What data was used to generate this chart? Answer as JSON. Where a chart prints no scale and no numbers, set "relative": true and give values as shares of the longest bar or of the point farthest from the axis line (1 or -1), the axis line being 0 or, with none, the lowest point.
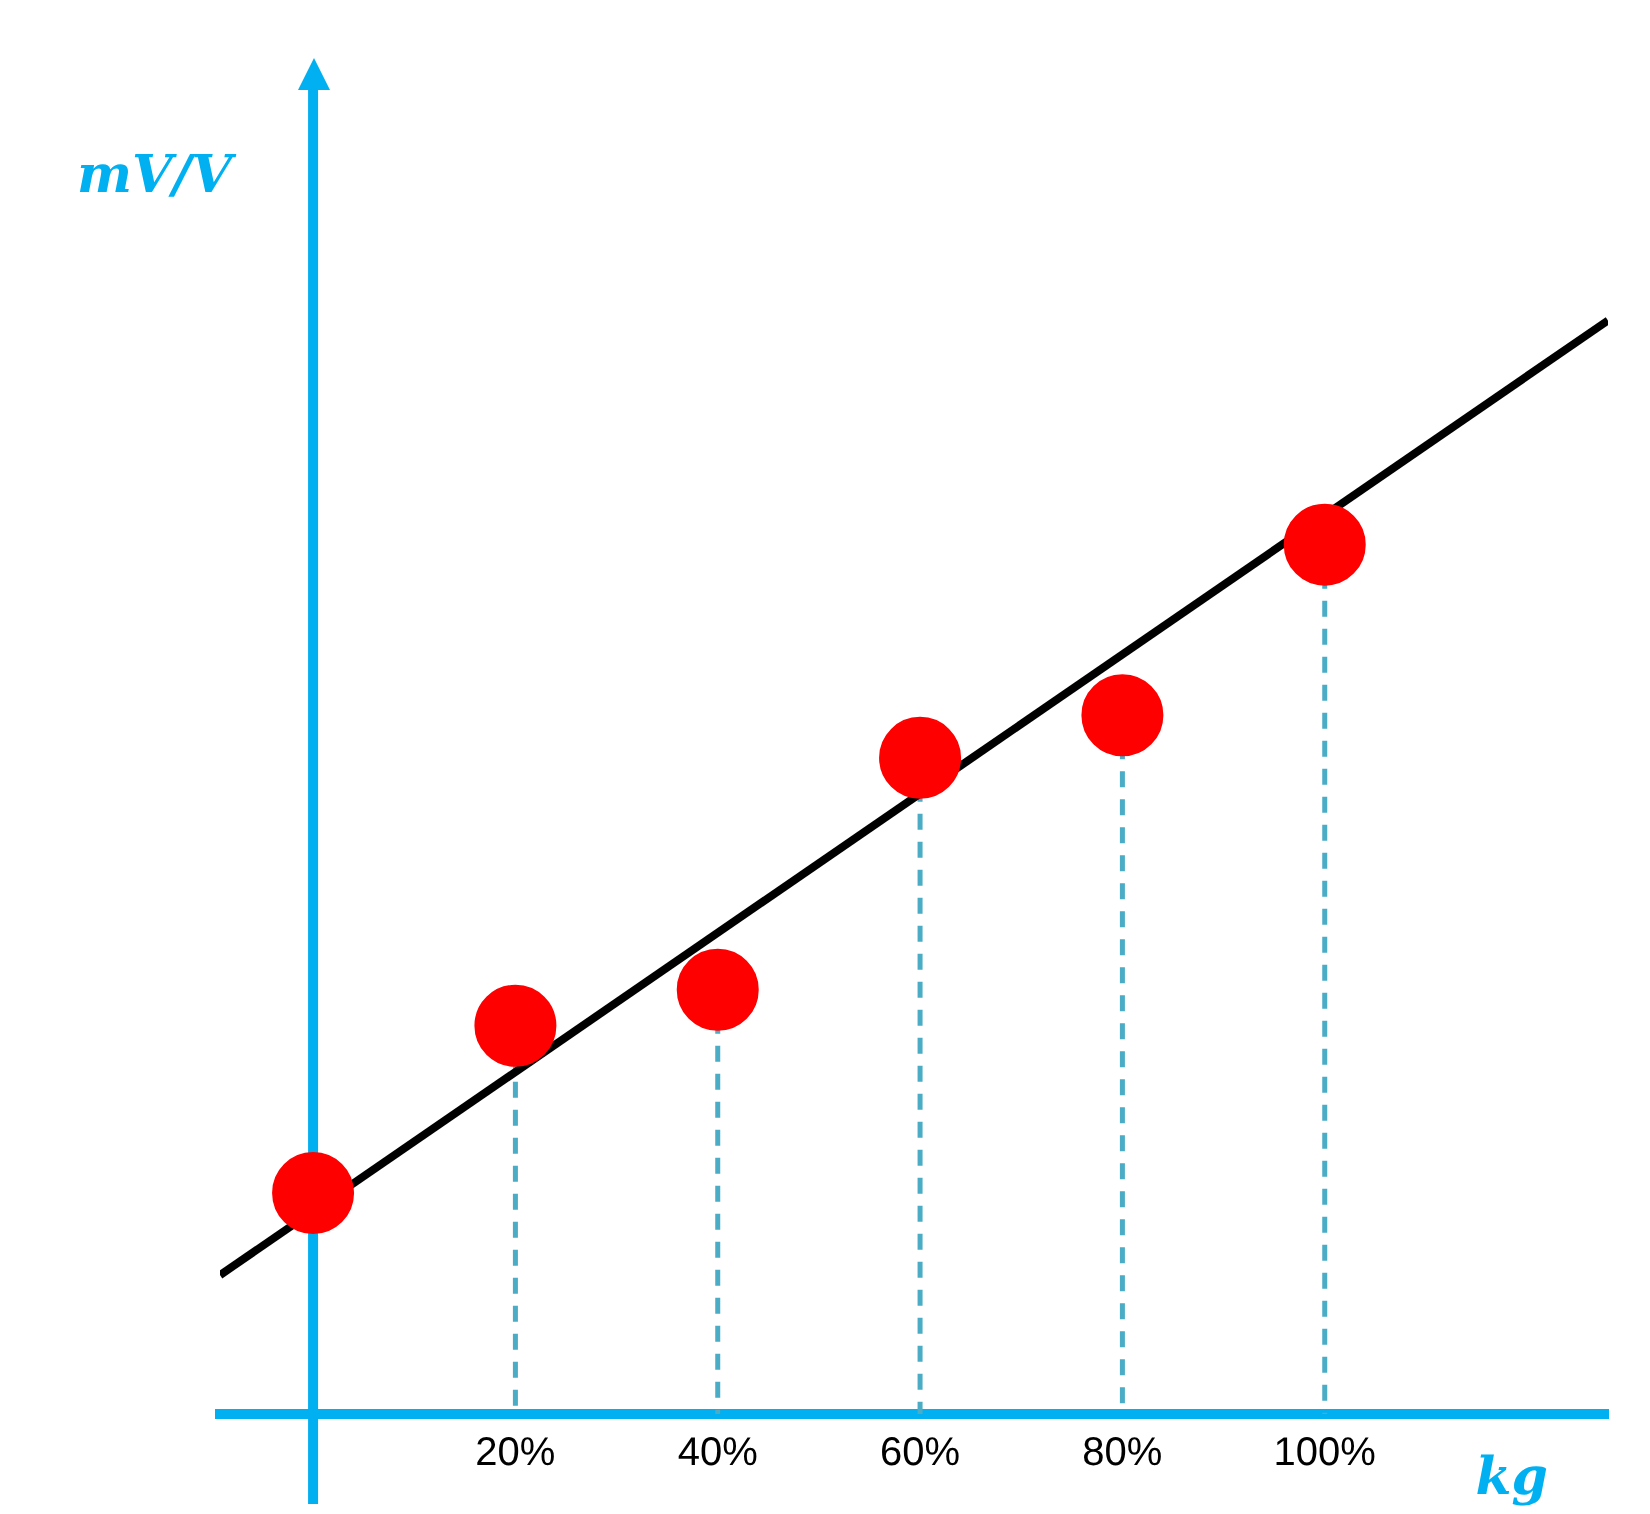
{
  "chart_data": {
    "type": "lollipop",
    "xlabel": "kg",
    "ylabel": "mV/V",
    "relative": true,
    "xlim": [
      -9.2,
      128
    ],
    "xticks": [
      {
        "value": 20,
        "label": "20%"
      },
      {
        "value": 40,
        "label": "40%"
      },
      {
        "value": 60,
        "label": "60%"
      },
      {
        "value": 80,
        "label": "80%"
      },
      {
        "value": 100,
        "label": "100%"
      }
    ],
    "ref_lines": [
      {
        "axis": "x",
        "value": 0,
        "color": "#00b0f0"
      }
    ],
    "series": [
      {
        "color": "#ff0000",
        "marker": "circle",
        "line_style": "dashed",
        "x": [
          0,
          20,
          40,
          60,
          80,
          100
        ],
        "values": [
          0.202,
          0.355,
          0.388,
          0.6,
          0.639,
          0.795
        ]
      },
      {
        "type": "line",
        "color": "#000000",
        "x": [
          -9.2,
          128
        ],
        "values": [
          0.127,
          1
        ]
      }
    ]
  }
}
